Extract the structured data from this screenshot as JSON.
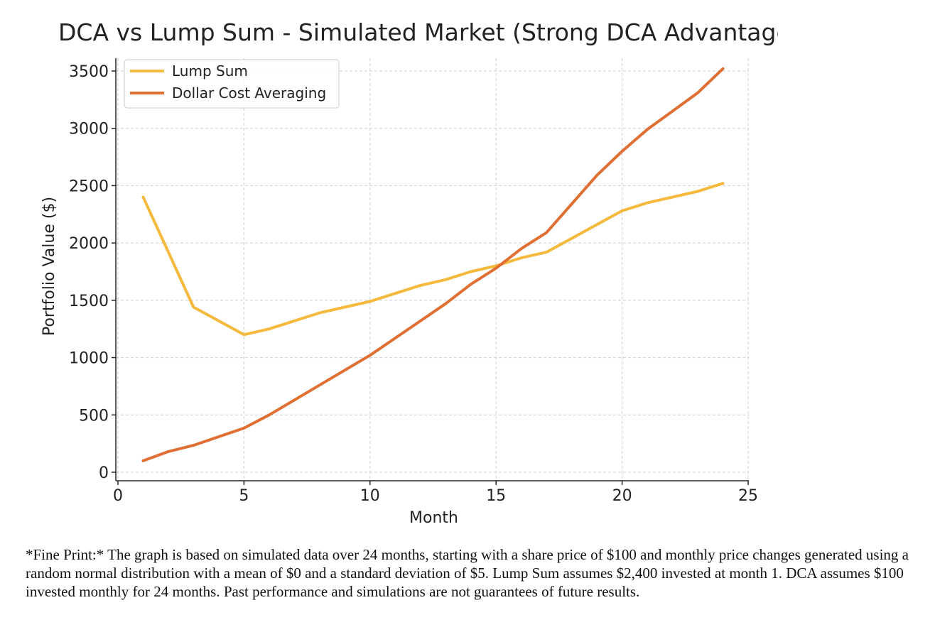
{
  "chart_data": {
    "type": "line",
    "title": "DCA vs Lump Sum - Simulated Market (Strong DCA Advantage)",
    "xlabel": "Month",
    "ylabel": "Portfolio Value ($)",
    "xlim": [
      0,
      25
    ],
    "ylim": [
      0,
      3500
    ],
    "xticks": [
      0,
      5,
      10,
      15,
      20,
      25
    ],
    "yticks": [
      0,
      500,
      1000,
      1500,
      2000,
      2500,
      3000,
      3500
    ],
    "grid": true,
    "legend_position": "top-left",
    "x": [
      1,
      2,
      3,
      4,
      5,
      6,
      7,
      8,
      9,
      10,
      11,
      12,
      13,
      14,
      15,
      16,
      17,
      18,
      19,
      20,
      21,
      22,
      23,
      24
    ],
    "series": [
      {
        "name": "Lump Sum",
        "color": "#F5B93D",
        "values": [
          2400,
          1920,
          1440,
          1320,
          1200,
          1250,
          1320,
          1390,
          1440,
          1490,
          1560,
          1630,
          1680,
          1750,
          1800,
          1870,
          1920,
          2040,
          2160,
          2280,
          2350,
          2400,
          2450,
          2520
        ]
      },
      {
        "name": "Dollar Cost Averaging",
        "color": "#E06F34",
        "values": [
          100,
          180,
          235,
          310,
          385,
          500,
          630,
          760,
          890,
          1020,
          1170,
          1320,
          1470,
          1640,
          1780,
          1950,
          2090,
          2340,
          2590,
          2800,
          2990,
          3150,
          3310,
          3520
        ]
      }
    ]
  },
  "fine_print": "*Fine Print:* The graph is based on simulated data over 24 months, starting with a share price of $100 and monthly price changes generated using a random normal distribution with a mean of $0 and a standard deviation of $5.  Lump Sum assumes $2,400 invested at month 1.  DCA assumes $100 invested monthly for 24 months.  Past performance and simulations are not guarantees of future results."
}
